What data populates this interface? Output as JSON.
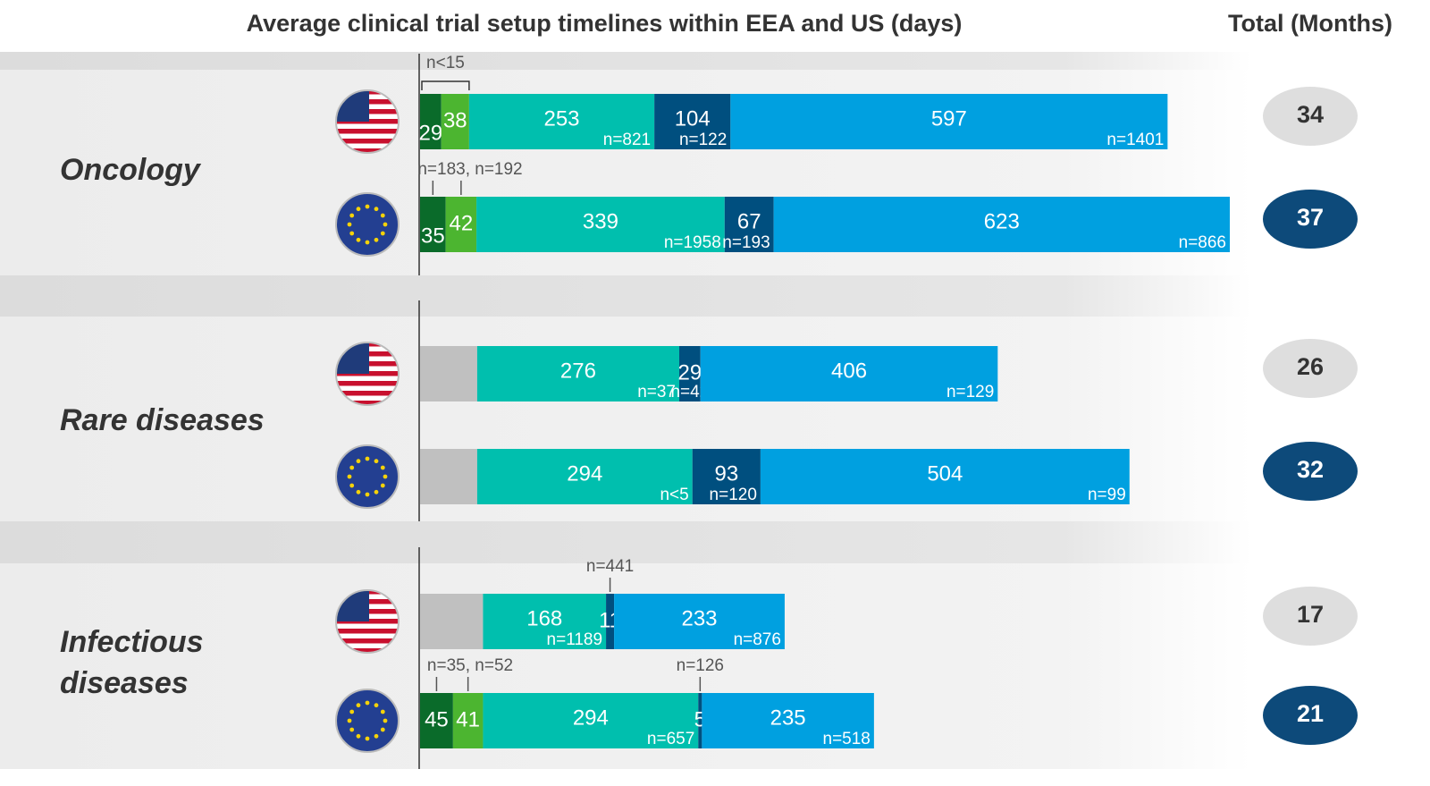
{
  "chart_data": {
    "type": "stacked-bar",
    "title": "Average clinical trial setup timelines within EEA and US (days)",
    "total_label": "Total (Months)",
    "xlim": [
      0,
      1106
    ],
    "groups": [
      {
        "name": "Oncology",
        "bars": [
          {
            "region": "US",
            "values": [
              29,
              38,
              253,
              104,
              597
            ],
            "colors": [
              "#0a6b2a",
              "#4cb530",
              "#00bfae",
              "#004f7f",
              "#00a0e0"
            ],
            "n_labels": [
              null,
              null,
              "n=821",
              "n=122",
              "n=1401"
            ],
            "notes": [
              "n<15"
            ],
            "total": 34
          },
          {
            "region": "EU",
            "values": [
              35,
              42,
              339,
              67,
              623
            ],
            "colors": [
              "#0a6b2a",
              "#4cb530",
              "#00bfae",
              "#004f7f",
              "#00a0e0"
            ],
            "n_labels": [
              null,
              null,
              "n=1958",
              "n=193",
              "n=866"
            ],
            "notes": [
              "n=183, n=192"
            ],
            "total": 37
          }
        ]
      },
      {
        "name": "Rare diseases",
        "bars": [
          {
            "region": "US",
            "values": [
              78,
              276,
              29,
              406
            ],
            "value_labels": [
              null,
              "276",
              "29",
              "406"
            ],
            "colors": [
              "#c0c0c0",
              "#00bfae",
              "#004f7f",
              "#00a0e0"
            ],
            "n_labels": [
              null,
              "n=37",
              "n=42",
              "n=129"
            ],
            "notes": [],
            "total": 26
          },
          {
            "region": "EU",
            "values": [
              78,
              294,
              93,
              504
            ],
            "value_labels": [
              null,
              "294",
              "93",
              "504"
            ],
            "colors": [
              "#c0c0c0",
              "#00bfae",
              "#004f7f",
              "#00a0e0"
            ],
            "n_labels": [
              null,
              "n<5",
              "n=120",
              "n=99"
            ],
            "notes": [],
            "total": 32
          }
        ]
      },
      {
        "name": "Infectious diseases",
        "bars": [
          {
            "region": "US",
            "values": [
              86,
              168,
              11,
              233
            ],
            "value_labels": [
              null,
              "168",
              "11",
              "233"
            ],
            "colors": [
              "#c0c0c0",
              "#00bfae",
              "#004f7f",
              "#00a0e0"
            ],
            "n_labels": [
              null,
              "n=1189",
              null,
              "n=876"
            ],
            "notes": [
              "n=441"
            ],
            "total": 17
          },
          {
            "region": "EU",
            "values": [
              45,
              41,
              294,
              5,
              235
            ],
            "colors": [
              "#0a6b2a",
              "#4cb530",
              "#00bfae",
              "#004f7f",
              "#00a0e0"
            ],
            "n_labels": [
              null,
              null,
              "n=657",
              null,
              "n=518"
            ],
            "notes": [
              "n=35, n=52",
              "n=126"
            ],
            "total": 21
          }
        ]
      }
    ]
  }
}
